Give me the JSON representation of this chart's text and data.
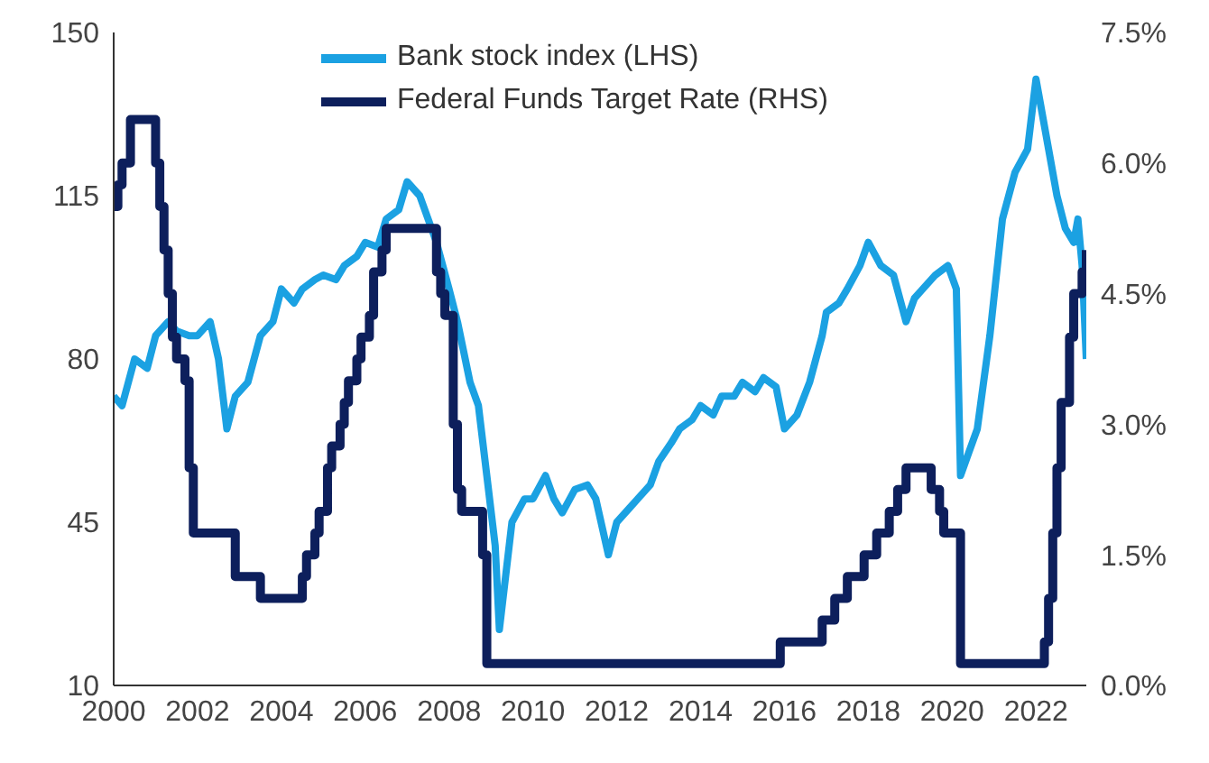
{
  "chart_data": {
    "type": "line",
    "xlim": [
      2000,
      2023.2
    ],
    "xticks": [
      2000,
      2002,
      2004,
      2006,
      2008,
      2010,
      2012,
      2014,
      2016,
      2018,
      2020,
      2022
    ],
    "ylim": [
      10,
      150
    ],
    "yticks": [
      10,
      45,
      80,
      115,
      150
    ],
    "y2lim": [
      0,
      7.5
    ],
    "y2ticks": [
      {
        "value": 0,
        "label": "0.0%"
      },
      {
        "value": 1.5,
        "label": "1.5%"
      },
      {
        "value": 3,
        "label": "3.0%"
      },
      {
        "value": 4.5,
        "label": "4.5%"
      },
      {
        "value": 6,
        "label": "6.0%"
      },
      {
        "value": 7.5,
        "label": "7.5%"
      }
    ],
    "legend": "top",
    "marker": "none",
    "line_style": "solid",
    "series": [
      {
        "name": "Bank stock index (LHS)",
        "color": "#1ba1e2",
        "x": [
          2000,
          2000.2,
          2000.5,
          2000.8,
          2001,
          2001.3,
          2001.5,
          2001.8,
          2002,
          2002.3,
          2002.5,
          2002.7,
          2002.9,
          2003.2,
          2003.5,
          2003.8,
          2004,
          2004.3,
          2004.5,
          2004.8,
          2005,
          2005.3,
          2005.5,
          2005.8,
          2006,
          2006.3,
          2006.5,
          2006.8,
          2007,
          2007.3,
          2007.5,
          2007.7,
          2008,
          2008.2,
          2008.5,
          2008.7,
          2008.9,
          2009.1,
          2009.2,
          2009.5,
          2009.8,
          2010,
          2010.3,
          2010.5,
          2010.7,
          2011,
          2011.3,
          2011.5,
          2011.8,
          2012,
          2012.3,
          2012.5,
          2012.8,
          2013,
          2013.3,
          2013.5,
          2013.8,
          2014,
          2014.3,
          2014.5,
          2014.8,
          2015,
          2015.3,
          2015.5,
          2015.8,
          2016,
          2016.3,
          2016.6,
          2016.9,
          2017,
          2017.3,
          2017.5,
          2017.8,
          2018,
          2018.3,
          2018.6,
          2018.9,
          2019.1,
          2019.3,
          2019.6,
          2019.9,
          2020.1,
          2020.2,
          2020.4,
          2020.6,
          2020.9,
          2021.2,
          2021.5,
          2021.8,
          2022,
          2022.1,
          2022.3,
          2022.5,
          2022.7,
          2022.9,
          2023,
          2023.1,
          2023.2
        ],
        "values": [
          72,
          70,
          80,
          78,
          85,
          88,
          86,
          85,
          85,
          88,
          80,
          65,
          72,
          75,
          85,
          88,
          95,
          92,
          95,
          97,
          98,
          97,
          100,
          102,
          105,
          104,
          110,
          112,
          118,
          115,
          110,
          105,
          95,
          88,
          75,
          70,
          55,
          40,
          22,
          45,
          50,
          50,
          55,
          50,
          47,
          52,
          53,
          50,
          38,
          45,
          48,
          50,
          53,
          58,
          62,
          65,
          67,
          70,
          68,
          72,
          72,
          75,
          73,
          76,
          74,
          65,
          68,
          75,
          85,
          90,
          92,
          95,
          100,
          105,
          100,
          98,
          88,
          93,
          95,
          98,
          100,
          95,
          55,
          60,
          65,
          85,
          110,
          120,
          125,
          140,
          135,
          125,
          115,
          108,
          105,
          110,
          100,
          80
        ]
      },
      {
        "name": "Federal Funds Target Rate (RHS)",
        "color": "#0d1f5c",
        "type": "step",
        "axis": "y2",
        "x": [
          2000,
          2000.1,
          2000.2,
          2000.4,
          2001,
          2001.1,
          2001.2,
          2001.3,
          2001.4,
          2001.5,
          2001.7,
          2001.8,
          2001.9,
          2002.9,
          2003.5,
          2004.5,
          2004.6,
          2004.8,
          2004.9,
          2005.1,
          2005.2,
          2005.4,
          2005.5,
          2005.6,
          2005.8,
          2005.9,
          2006.1,
          2006.2,
          2006.4,
          2006.5,
          2007.7,
          2007.8,
          2007.9,
          2008.1,
          2008.2,
          2008.3,
          2008.8,
          2008.9,
          2015.9,
          2016.9,
          2017.2,
          2017.5,
          2017.9,
          2018.2,
          2018.5,
          2018.7,
          2018.9,
          2019.5,
          2019.7,
          2019.8,
          2020.2,
          2022.2,
          2022.3,
          2022.4,
          2022.5,
          2022.6,
          2022.8,
          2022.9,
          2023.1,
          2023.2
        ],
        "values": [
          5.5,
          5.75,
          6,
          6.5,
          6,
          5.5,
          5,
          4.5,
          4,
          3.75,
          3.5,
          2.5,
          1.75,
          1.25,
          1,
          1.25,
          1.5,
          1.75,
          2,
          2.5,
          2.75,
          3,
          3.25,
          3.5,
          3.75,
          4,
          4.25,
          4.75,
          5,
          5.25,
          4.75,
          4.5,
          4.25,
          3,
          2.25,
          2,
          1.5,
          0.25,
          0.5,
          0.75,
          1,
          1.25,
          1.5,
          1.75,
          2,
          2.25,
          2.5,
          2.25,
          2,
          1.75,
          0.25,
          0.5,
          1,
          1.75,
          2.5,
          3.25,
          4,
          4.5,
          4.75,
          5
        ]
      }
    ]
  }
}
